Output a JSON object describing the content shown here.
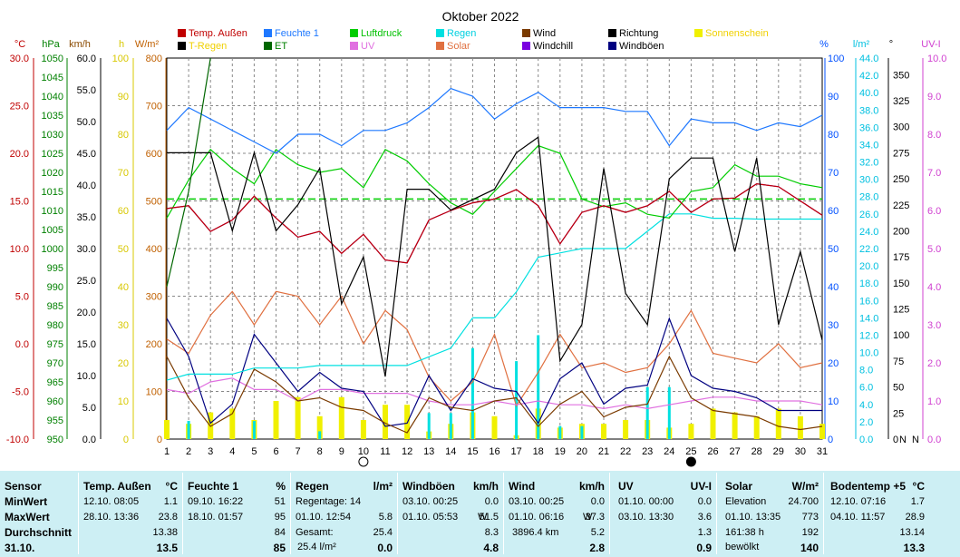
{
  "chart_data": {
    "type": "line",
    "title": "Oktober 2022",
    "days": [
      1,
      2,
      3,
      4,
      5,
      6,
      7,
      8,
      9,
      10,
      11,
      12,
      13,
      14,
      15,
      16,
      17,
      18,
      19,
      20,
      21,
      22,
      23,
      24,
      25,
      26,
      27,
      28,
      29,
      30,
      31
    ],
    "axes": {
      "temp": {
        "unit": "°C",
        "color": "#c00000",
        "ticks": [
          "30.0",
          "25.0",
          "20.0",
          "15.0",
          "10.0",
          "5.0",
          "0.0",
          "-5.0",
          "-10.0"
        ]
      },
      "pressure": {
        "unit": "hPa",
        "color": "#008000",
        "ticks": [
          "1050",
          "1045",
          "1040",
          "1035",
          "1030",
          "1025",
          "1020",
          "1015",
          "1010",
          "1005",
          "1000",
          "995",
          "990",
          "985",
          "980",
          "975",
          "970",
          "965",
          "960",
          "955",
          "950"
        ]
      },
      "wind": {
        "unit": "km/h",
        "color": "#000000",
        "ticks": [
          "60.0",
          "55.0",
          "50.0",
          "45.0",
          "40.0",
          "35.0",
          "30.0",
          "25.0",
          "20.0",
          "15.0",
          "10.0",
          "5.0",
          "0.0"
        ]
      },
      "sunhours": {
        "unit": "h",
        "color": "#d8c800",
        "ticks": [
          "100",
          "90",
          "80",
          "70",
          "60",
          "50",
          "40",
          "30",
          "20",
          "10",
          "0"
        ]
      },
      "solar": {
        "unit": "W/m²",
        "color": "#c06000",
        "ticks": [
          "800",
          "700",
          "600",
          "500",
          "400",
          "300",
          "200",
          "100",
          "0"
        ]
      },
      "humidity": {
        "unit": "%",
        "color": "#0050ff",
        "ticks": [
          "100",
          "90",
          "80",
          "70",
          "60",
          "50",
          "40",
          "30",
          "20",
          "10",
          "0"
        ]
      },
      "rain": {
        "unit": "l/m²",
        "color": "#00c0e0",
        "ticks": [
          "44.0",
          "42.0",
          "40.0",
          "38.0",
          "36.0",
          "34.0",
          "32.0",
          "30.0",
          "28.0",
          "26.0",
          "24.0",
          "22.0",
          "20.0",
          "18.0",
          "16.0",
          "14.0",
          "12.0",
          "10.0",
          "8.0",
          "6.0",
          "4.0",
          "2.0",
          "0.0"
        ]
      },
      "direction": {
        "unit": "°",
        "color": "#000000",
        "ticks": [
          "350",
          "325",
          "300",
          "275",
          "250",
          "225",
          "200",
          "175",
          "150",
          "125",
          "100",
          "75",
          "50",
          "25",
          "0"
        ],
        "labels": [
          "N",
          "N"
        ]
      },
      "uv": {
        "unit": "UV-I",
        "color": "#d040d0",
        "ticks": [
          "10.0",
          "9.0",
          "8.0",
          "7.0",
          "6.0",
          "5.0",
          "4.0",
          "3.0",
          "2.0",
          "1.0",
          "0.0"
        ]
      }
    },
    "legend": [
      {
        "name": "Temp. Außen",
        "color": "#c00000"
      },
      {
        "name": "Feuchte 1",
        "color": "#1e78ff"
      },
      {
        "name": "Luftdruck",
        "color": "#00cc00"
      },
      {
        "name": "Regen",
        "color": "#00e0e0"
      },
      {
        "name": "Wind",
        "color": "#7a3a00"
      },
      {
        "name": "Richtung",
        "color": "#000000"
      },
      {
        "name": "Sonnenschein",
        "color": "#f0f000"
      },
      {
        "name": "T-Regen",
        "color": "#000000"
      },
      {
        "name": "ET",
        "color": "#006600"
      },
      {
        "name": "UV",
        "color": "#e070e0"
      },
      {
        "name": "Solar",
        "color": "#e07040"
      },
      {
        "name": "Windchill",
        "color": "#7a00e0"
      },
      {
        "name": "Windböen",
        "color": "#000080"
      }
    ],
    "series": [
      {
        "name": "Temp. Außen",
        "axis": "temp",
        "values": [
          14.2,
          14.5,
          11.8,
          13.0,
          15.5,
          13.2,
          11.2,
          11.8,
          9.5,
          11.5,
          8.8,
          8.5,
          13.0,
          14.0,
          14.8,
          15.2,
          16.2,
          14.5,
          10.5,
          13.8,
          14.5,
          13.8,
          14.5,
          16.0,
          13.8,
          15.2,
          15.3,
          16.8,
          16.5,
          15.0,
          13.5
        ]
      },
      {
        "name": "Feuchte 1",
        "axis": "humidity",
        "values": [
          81,
          87,
          84,
          81,
          78,
          75,
          80,
          80,
          77,
          81,
          81,
          83,
          87,
          92,
          90,
          84,
          88,
          91,
          87,
          87,
          87,
          86,
          86,
          77,
          84,
          83,
          83,
          81,
          83,
          82,
          85
        ]
      },
      {
        "name": "Luftdruck",
        "axis": "pressure",
        "values": [
          1008,
          1018,
          1026,
          1021,
          1017,
          1026,
          1022,
          1020,
          1021,
          1016,
          1026,
          1023,
          1017,
          1012,
          1009,
          1015,
          1021,
          1027,
          1025,
          1013,
          1011,
          1012,
          1009,
          1008,
          1015,
          1016,
          1022,
          1019,
          1019,
          1017,
          1016
        ]
      },
      {
        "name": "Regen",
        "axis": "rain",
        "values": [
          6.8,
          7.5,
          7.5,
          7.5,
          8.2,
          8.2,
          8.2,
          8.5,
          8.5,
          8.5,
          8.5,
          8.5,
          9.5,
          10.5,
          14,
          14,
          17,
          21,
          21.5,
          22,
          22,
          22,
          24,
          26,
          26,
          25.5,
          25.5,
          25.4,
          25.4,
          25.4,
          25.4
        ]
      },
      {
        "name": "Wind",
        "axis": "wind",
        "values": [
          13.0,
          6.5,
          2.0,
          4.0,
          11.0,
          9.0,
          6.0,
          6.5,
          5.0,
          4.5,
          2.5,
          1.0,
          6.5,
          5.0,
          4.5,
          6.0,
          6.5,
          2.0,
          5.5,
          7.5,
          3.5,
          5.0,
          5.5,
          13.0,
          6.5,
          4.5,
          4.0,
          3.5,
          2.0,
          1.5,
          2.0
        ]
      },
      {
        "name": "Richtung",
        "axis": "direction",
        "values": [
          275,
          275,
          275,
          200,
          275,
          200,
          225,
          260,
          130,
          175,
          60,
          240,
          240,
          220,
          230,
          240,
          275,
          290,
          75,
          110,
          260,
          140,
          110,
          250,
          270,
          270,
          180,
          270,
          110,
          180,
          95
        ]
      },
      {
        "name": "T-Regen",
        "axis": "pressure",
        "values": [
          990,
          1015,
          1050
        ]
      },
      {
        "name": "UV",
        "axis": "uv",
        "values": [
          1.3,
          1.2,
          1.5,
          1.6,
          1.3,
          1.3,
          1.0,
          1.3,
          1.3,
          1.2,
          1.2,
          1.2,
          1.0,
          0.9,
          0.9,
          1.0,
          0.9,
          1.0,
          0.9,
          0.9,
          0.8,
          0.9,
          0.8,
          0.9,
          1.0,
          1.1,
          1.1,
          1.0,
          1.0,
          1.0,
          0.9
        ]
      },
      {
        "name": "Solar",
        "axis": "solar",
        "values": [
          210,
          180,
          260,
          310,
          240,
          310,
          300,
          240,
          300,
          200,
          270,
          230,
          130,
          80,
          120,
          220,
          70,
          140,
          220,
          150,
          160,
          140,
          150,
          200,
          270,
          180,
          170,
          160,
          200,
          150,
          160
        ]
      },
      {
        "name": "Windchill",
        "axis": "temp",
        "values": [
          14.2,
          14.5,
          11.8,
          13.0,
          15.5,
          13.2,
          11.2,
          11.8,
          9.5,
          11.5,
          8.8,
          8.5,
          13.0,
          14.0,
          14.8,
          15.2,
          16.2,
          14.5,
          10.5,
          13.8,
          14.5,
          13.8,
          14.5,
          16.0,
          13.8,
          15.2,
          15.3,
          16.8,
          16.5,
          15.0,
          13.5
        ]
      },
      {
        "name": "Windböen",
        "axis": "wind",
        "values": [
          19.0,
          13.0,
          2.5,
          5.5,
          16.5,
          12.0,
          7.5,
          10.5,
          8.0,
          7.5,
          2.0,
          2.5,
          10.0,
          4.5,
          9.5,
          8.0,
          7.5,
          2.5,
          9.5,
          12.0,
          5.5,
          8.0,
          8.5,
          19.0,
          10.0,
          8.0,
          7.5,
          6.5,
          4.5,
          4.5,
          4.5
        ]
      },
      {
        "name": "Sonnenschein",
        "axis": "sunhours",
        "values": [
          5,
          4,
          7,
          8,
          5,
          10,
          11,
          6,
          11,
          5,
          9,
          9,
          2,
          4,
          7,
          6,
          1,
          8,
          3,
          4,
          4,
          5,
          5,
          3,
          4,
          8,
          7,
          6,
          8,
          6,
          4
        ]
      }
    ],
    "reference_line": {
      "axis": "pressure",
      "value": 1013,
      "color": "#00cc00",
      "style": "dashed"
    },
    "moon_markers": [
      {
        "day": 10,
        "type": "full"
      },
      {
        "day": 25,
        "type": "new"
      }
    ]
  },
  "stats": {
    "sensor": {
      "header": "Sensor",
      "rows": [
        "MinWert",
        "MaxWert",
        "Durchschnitt",
        "31.10."
      ]
    },
    "temp": {
      "header": "Temp. Außen",
      "unit": "°C",
      "min_date": "12.10.  08:05",
      "min": "1.1",
      "max_date": "28.10.  13:36",
      "max": "23.8",
      "avg": "13.38",
      "today": "13.5"
    },
    "humidity": {
      "header": "Feuchte 1",
      "unit": "%",
      "min_date": "09.10.  16:22",
      "min": "51",
      "max_date": "18.10.  01:57",
      "max": "95",
      "avg": "84",
      "today": "85"
    },
    "rain": {
      "header": "Regen",
      "unit": "l/m²",
      "row1": "Regentage: 14",
      "row2_label": "01.10.  12:54",
      "row2": "5.8",
      "row3_label": "Gesamt:",
      "row3": "25.4",
      "row4_label": "25.4 l/m²",
      "today": "0.0"
    },
    "gusts": {
      "header": "Windböen",
      "unit": "km/h",
      "min_date": "03.10.  00:25",
      "min": "0.0",
      "max_date": "01.10.  05:53",
      "max_dir": "W",
      "max": "51.5",
      "avg": "8.3",
      "today": "4.8"
    },
    "wind": {
      "header": "Wind",
      "unit": "km/h",
      "min_date": "03.10.  00:25",
      "min": "0.0",
      "max_date": "01.10.  06:16",
      "max_dir": "W",
      "max": "37.3",
      "dist": "3896.4 km",
      "avg": "5.2",
      "today": "2.8"
    },
    "uv": {
      "header": "UV",
      "unit": "UV-I",
      "min_date": "01.10.  00:00",
      "min": "0.0",
      "max_date": "03.10.  13:30",
      "max": "3.6",
      "avg": "1.3",
      "today": "0.9"
    },
    "solar": {
      "header": "Solar",
      "unit": "W/m²",
      "row1_label": "Elevation",
      "row1": "24.700",
      "row2_label": "01.10.  13:35",
      "row2": "773",
      "row3_label": "161:38 h",
      "row3": "192",
      "row4_label": "bewölkt",
      "today": "140"
    },
    "soil": {
      "header": "Bodentemp +5",
      "unit": "°C",
      "min_date": "12.10.  07:16",
      "min": "1.7",
      "max_date": "04.10.  11:57",
      "max": "28.9",
      "avg": "13.14",
      "today": "13.3"
    }
  }
}
